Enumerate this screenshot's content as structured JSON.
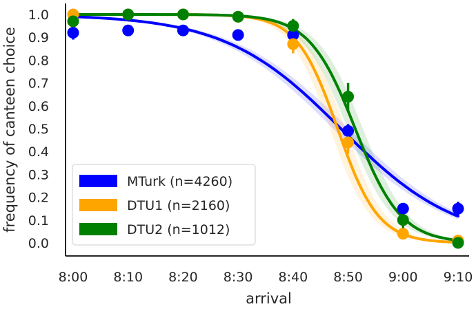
{
  "chart_data": {
    "type": "scatter",
    "xlabel": "arrival",
    "ylabel": "frequency of canteen choice",
    "x_categories": [
      "8:00",
      "8:10",
      "8:20",
      "8:30",
      "8:40",
      "8:50",
      "9:00",
      "9:10"
    ],
    "x_minutes": [
      0,
      10,
      20,
      30,
      40,
      50,
      60,
      70
    ],
    "xlim": [
      0,
      70
    ],
    "ylim": [
      -0.03,
      1.04
    ],
    "yticks": [
      "0.0",
      "0.1",
      "0.2",
      "0.3",
      "0.4",
      "0.5",
      "0.6",
      "0.7",
      "0.8",
      "0.9",
      "1.0"
    ],
    "legend_position": "lower-left",
    "grid": false,
    "series": [
      {
        "name": "MTurk (n=4260)",
        "color": "#0000ff",
        "points": [
          {
            "x": "8:00",
            "y": 0.92,
            "err": 0.03
          },
          {
            "x": "8:10",
            "y": 0.93,
            "err": 0.01
          },
          {
            "x": "8:20",
            "y": 0.93,
            "err": 0.01
          },
          {
            "x": "8:30",
            "y": 0.91,
            "err": 0.01
          },
          {
            "x": "8:40",
            "y": 0.91,
            "err": 0.02
          },
          {
            "x": "8:50",
            "y": 0.49,
            "err": 0.03
          },
          {
            "x": "9:00",
            "y": 0.15,
            "err": 0.02
          },
          {
            "x": "9:10",
            "y": 0.15,
            "err": 0.03
          }
        ],
        "fit": {
          "midpoint": 48.7,
          "slope": 0.095,
          "upper": 1.0,
          "lower": 0.0
        }
      },
      {
        "name": "DTU1 (n=2160)",
        "color": "#ffa500",
        "points": [
          {
            "x": "8:00",
            "y": 1.0,
            "err": 0.005
          },
          {
            "x": "8:10",
            "y": 1.0,
            "err": 0.005
          },
          {
            "x": "8:20",
            "y": 1.0,
            "err": 0.005
          },
          {
            "x": "8:30",
            "y": 0.99,
            "err": 0.01
          },
          {
            "x": "8:40",
            "y": 0.87,
            "err": 0.04
          },
          {
            "x": "8:50",
            "y": 0.44,
            "err": 0.05
          },
          {
            "x": "9:00",
            "y": 0.04,
            "err": 0.02
          },
          {
            "x": "9:10",
            "y": 0.01,
            "err": 0.01
          }
        ],
        "fit": {
          "midpoint": 48.1,
          "slope": 0.27,
          "upper": 1.0,
          "lower": 0.0
        }
      },
      {
        "name": "DTU2 (n=1012)",
        "color": "#008000",
        "points": [
          {
            "x": "8:00",
            "y": 0.97,
            "err": 0.02
          },
          {
            "x": "8:10",
            "y": 1.0,
            "err": 0.01
          },
          {
            "x": "8:20",
            "y": 1.0,
            "err": 0.01
          },
          {
            "x": "8:30",
            "y": 0.99,
            "err": 0.01
          },
          {
            "x": "8:40",
            "y": 0.95,
            "err": 0.03
          },
          {
            "x": "8:50",
            "y": 0.64,
            "err": 0.06
          },
          {
            "x": "9:00",
            "y": 0.1,
            "err": 0.05
          },
          {
            "x": "9:10",
            "y": 0.0,
            "err": 0.01
          }
        ],
        "fit": {
          "midpoint": 51.3,
          "slope": 0.24,
          "upper": 1.0,
          "lower": 0.0
        }
      }
    ]
  }
}
